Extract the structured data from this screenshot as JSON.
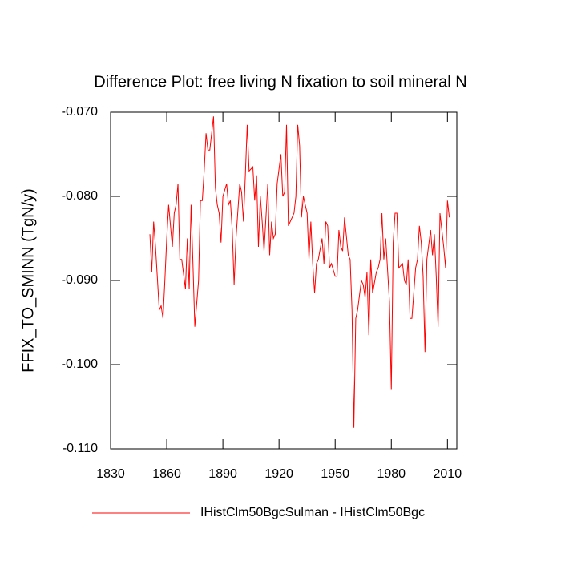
{
  "chart_data": {
    "type": "line",
    "title": "Difference Plot: free living N fixation to soil mineral N",
    "y_label": "FFIX_TO_SMINN  (TgN/y)",
    "x": [
      1851,
      1852,
      1853,
      1854,
      1856,
      1857,
      1858,
      1859,
      1860,
      1861,
      1863,
      1864,
      1865,
      1866,
      1867,
      1868,
      1870,
      1871,
      1872,
      1873,
      1874,
      1875,
      1877,
      1878,
      1879,
      1880,
      1881,
      1882,
      1883,
      1885,
      1886,
      1887,
      1888,
      1889,
      1890,
      1892,
      1893,
      1894,
      1895,
      1896,
      1897,
      1899,
      1900,
      1901,
      1902,
      1903,
      1904,
      1906,
      1907,
      1908,
      1909,
      1910,
      1911,
      1912,
      1914,
      1915,
      1916,
      1917,
      1918,
      1919,
      1921,
      1922,
      1923,
      1924,
      1925,
      1926,
      1928,
      1929,
      1930,
      1931,
      1932,
      1933,
      1935,
      1936,
      1937,
      1938,
      1939,
      1940,
      1941,
      1943,
      1944,
      1945,
      1946,
      1947,
      1948,
      1950,
      1951,
      1952,
      1953,
      1954,
      1955,
      1957,
      1958,
      1959,
      1960,
      1961,
      1962,
      1964,
      1965,
      1966,
      1967,
      1968,
      1969,
      1970,
      1972,
      1973,
      1974,
      1975,
      1976,
      1977,
      1979,
      1980,
      1981,
      1982,
      1983,
      1984,
      1986,
      1987,
      1988,
      1989,
      1990,
      1991,
      1993,
      1994,
      1995,
      1996,
      1997,
      1998,
      1999,
      2001,
      2002,
      2003,
      2004,
      2005,
      2006,
      2008,
      2009,
      2010,
      2011
    ],
    "series": [
      {
        "name": "IHistClm50BgcSulman - IHistClm50Bgc",
        "color": "#ff0000",
        "values": [
          -0.0845,
          -0.089,
          -0.083,
          -0.086,
          -0.0935,
          -0.093,
          -0.0945,
          -0.09,
          -0.085,
          -0.081,
          -0.086,
          -0.082,
          -0.081,
          -0.0785,
          -0.0875,
          -0.0875,
          -0.091,
          -0.085,
          -0.091,
          -0.081,
          -0.088,
          -0.0955,
          -0.09,
          -0.0805,
          -0.0805,
          -0.077,
          -0.0725,
          -0.0745,
          -0.0745,
          -0.0705,
          -0.079,
          -0.081,
          -0.082,
          -0.0855,
          -0.08,
          -0.0785,
          -0.081,
          -0.0805,
          -0.084,
          -0.0905,
          -0.085,
          -0.0785,
          -0.0795,
          -0.083,
          -0.0775,
          -0.0715,
          -0.077,
          -0.0765,
          -0.0805,
          -0.0775,
          -0.086,
          -0.08,
          -0.083,
          -0.0865,
          -0.0785,
          -0.087,
          -0.083,
          -0.085,
          -0.0845,
          -0.0785,
          -0.075,
          -0.08,
          -0.0795,
          -0.0715,
          -0.0835,
          -0.083,
          -0.082,
          -0.08,
          -0.0715,
          -0.074,
          -0.0825,
          -0.08,
          -0.082,
          -0.0875,
          -0.083,
          -0.088,
          -0.0915,
          -0.088,
          -0.0875,
          -0.085,
          -0.088,
          -0.083,
          -0.0835,
          -0.0885,
          -0.088,
          -0.0895,
          -0.0895,
          -0.084,
          -0.086,
          -0.0865,
          -0.0825,
          -0.087,
          -0.0875,
          -0.0935,
          -0.1075,
          -0.0945,
          -0.0935,
          -0.09,
          -0.0905,
          -0.092,
          -0.089,
          -0.0965,
          -0.0875,
          -0.0915,
          -0.089,
          -0.0885,
          -0.0875,
          -0.082,
          -0.0875,
          -0.085,
          -0.0925,
          -0.103,
          -0.0855,
          -0.082,
          -0.082,
          -0.0885,
          -0.088,
          -0.09,
          -0.0905,
          -0.0875,
          -0.0945,
          -0.0945,
          -0.0885,
          -0.0875,
          -0.0835,
          -0.0855,
          -0.0895,
          -0.0985,
          -0.0875,
          -0.084,
          -0.087,
          -0.0845,
          -0.0895,
          -0.0955,
          -0.082,
          -0.086,
          -0.0885,
          -0.0805,
          -0.0825
        ]
      }
    ],
    "xlim": [
      1830,
      2015
    ],
    "xticks": [
      1830,
      1860,
      1890,
      1920,
      1950,
      1980,
      2010
    ],
    "ylim": [
      -0.11,
      -0.07
    ],
    "yticks": [
      {
        "value": -0.11,
        "label": "-0.110"
      },
      {
        "value": -0.1,
        "label": "-0.100"
      },
      {
        "value": -0.09,
        "label": "-0.090"
      },
      {
        "value": -0.08,
        "label": "-0.080"
      },
      {
        "value": -0.07,
        "label": "-0.070"
      }
    ],
    "grid": false,
    "legend": "bottom"
  }
}
